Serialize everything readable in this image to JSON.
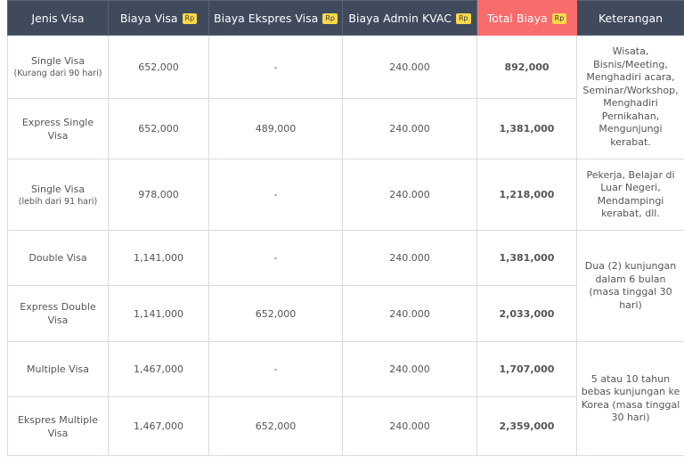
{
  "headers": {
    "jenis": "Jenis Visa",
    "biaya": "Biaya Visa",
    "ekspres": "Biaya Ekspres Visa",
    "admin": "Biaya Admin KVAC",
    "total": "Total Biaya",
    "keterangan": "Keterangan",
    "currency_badge": "Rp"
  },
  "rows": [
    {
      "jenis": "Single Visa",
      "jenis_sub": "(Kurang dari 90 hari)",
      "biaya": "652,000",
      "ekspres": "-",
      "admin": "240.000",
      "total": "892,000"
    },
    {
      "jenis": "Express Single Visa",
      "jenis_sub": "",
      "biaya": "652,000",
      "ekspres": "489,000",
      "admin": "240.000",
      "total": "1,381,000"
    },
    {
      "jenis": "Single Visa",
      "jenis_sub": "(lebih dari 91 hari)",
      "biaya": "978,000",
      "ekspres": "-",
      "admin": "240.000",
      "total": "1,218,000"
    },
    {
      "jenis": "Double Visa",
      "jenis_sub": "",
      "biaya": "1,141,000",
      "ekspres": "-",
      "admin": "240.000",
      "total": "1,381,000"
    },
    {
      "jenis": "Express Double Visa",
      "jenis_sub": "",
      "biaya": "1,141,000",
      "ekspres": "652,000",
      "admin": "240.000",
      "total": "2,033,000"
    },
    {
      "jenis": "Multiple Visa",
      "jenis_sub": "",
      "biaya": "1,467,000",
      "ekspres": "-",
      "admin": "240.000",
      "total": "1,707,000"
    },
    {
      "jenis": "Ekspres Multiple Visa",
      "jenis_sub": "",
      "biaya": "1,467,000",
      "ekspres": "652,000",
      "admin": "240.000",
      "total": "2,359,000"
    }
  ],
  "keterangan": [
    "Wisata, Bisnis/Meeting, Menghadiri acara, Seminar/Workshop, Menghadiri Pernikahan, Mengunjungi kerabat.",
    "Pekerja, Belajar di Luar Negeri, Mendampingi kerabat, dll.",
    "Dua (2) kunjungan dalam 6 bulan (masa tinggal 30 hari)",
    "5 atau 10 tahun bebas kunjungan ke Korea (masa tinggal 30 hari)"
  ]
}
